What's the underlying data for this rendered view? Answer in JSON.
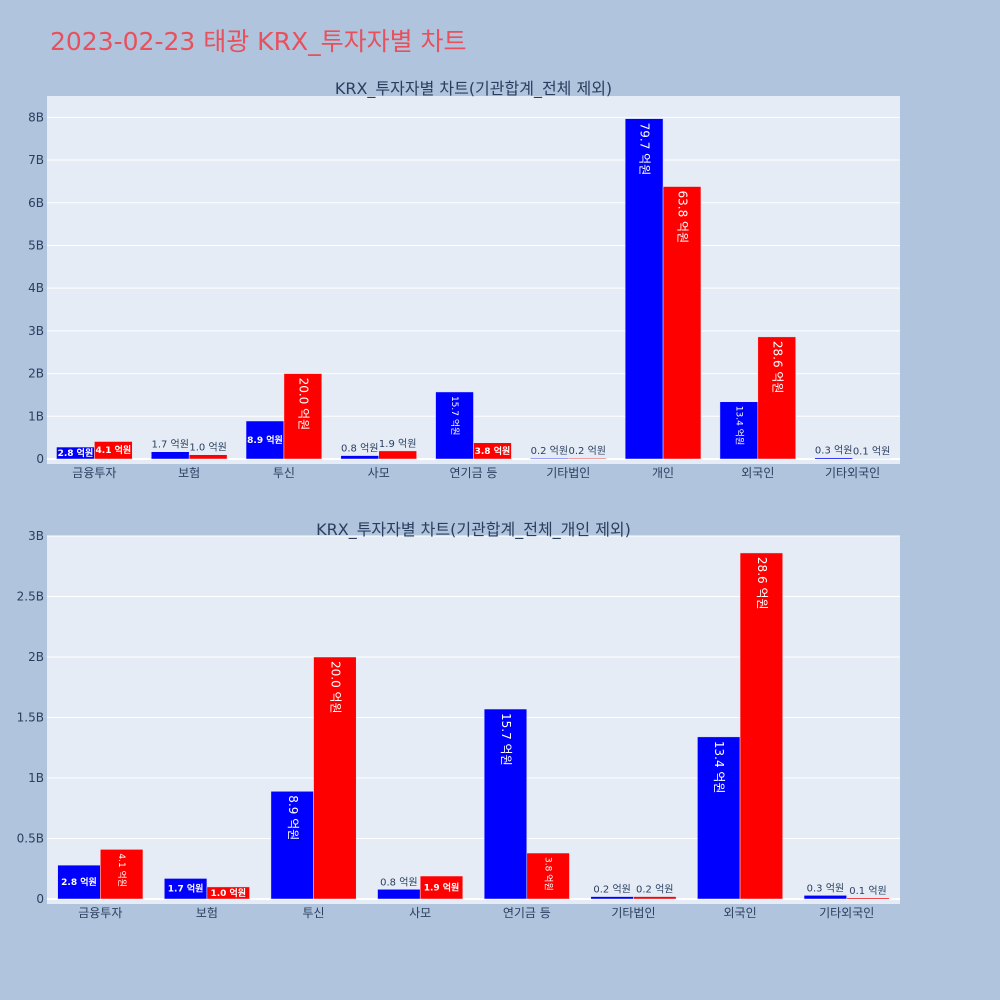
{
  "page": {
    "title": "2023-02-23 태광 KRX_투자자별 차트"
  },
  "colors": {
    "buy": "#0000ff",
    "sell": "#ff0000",
    "plot_bg": "#e5ecf6",
    "paper_bg": "#b0c4de",
    "title": "#e8505b"
  },
  "chart_data": [
    {
      "type": "bar",
      "title": "KRX_투자자별 차트(기관합계_전체 제외)",
      "categories": [
        "금융투자",
        "보험",
        "투신",
        "사모",
        "연기금 등",
        "기타법인",
        "개인",
        "외국인",
        "기타외국인"
      ],
      "series": [
        {
          "color": "#0000ff",
          "values": [
            280000000,
            170000000,
            890000000,
            80000000,
            1570000000,
            20000000,
            7970000000,
            1340000000,
            30000000
          ],
          "labels": [
            "2.8 억원",
            "1.7 억원",
            "8.9 억원",
            "0.8 억원",
            "15.7 억원",
            "0.2 억원",
            "79.7 억원",
            "13.4 억원",
            "0.3 억원"
          ]
        },
        {
          "color": "#ff0000",
          "values": [
            410000000,
            100000000,
            2000000000,
            190000000,
            380000000,
            20000000,
            6380000000,
            2860000000,
            10000000
          ],
          "labels": [
            "4.1 억원",
            "1.0 억원",
            "20.0 억원",
            "1.9 억원",
            "3.8 억원",
            "0.2 억원",
            "63.8 억원",
            "28.6 억원",
            "0.1 억원"
          ]
        }
      ],
      "ylim": [
        0,
        8500000000
      ],
      "yticks": [
        0,
        1000000000,
        2000000000,
        3000000000,
        4000000000,
        5000000000,
        6000000000,
        7000000000,
        8000000000
      ],
      "ytick_labels": [
        "0",
        "1B",
        "2B",
        "3B",
        "4B",
        "5B",
        "6B",
        "7B",
        "8B"
      ],
      "grid": true
    },
    {
      "type": "bar",
      "title": "KRX_투자자별 차트(기관합계_전체_개인 제외)",
      "categories": [
        "금융투자",
        "보험",
        "투신",
        "사모",
        "연기금 등",
        "기타법인",
        "외국인",
        "기타외국인"
      ],
      "series": [
        {
          "color": "#0000ff",
          "values": [
            280000000,
            170000000,
            890000000,
            80000000,
            1570000000,
            20000000,
            1340000000,
            30000000
          ],
          "labels": [
            "2.8 억원",
            "1.7 억원",
            "8.9 억원",
            "0.8 억원",
            "15.7 억원",
            "0.2 억원",
            "13.4 억원",
            "0.3 억원"
          ]
        },
        {
          "color": "#ff0000",
          "values": [
            410000000,
            100000000,
            2000000000,
            190000000,
            380000000,
            20000000,
            2860000000,
            10000000
          ],
          "labels": [
            "4.1 억원",
            "1.0 억원",
            "20.0 억원",
            "1.9 억원",
            "3.8 억원",
            "0.2 억원",
            "28.6 억원",
            "0.1 억원"
          ]
        }
      ],
      "ylim": [
        0,
        3000000000
      ],
      "yticks": [
        0,
        500000000,
        1000000000,
        1500000000,
        2000000000,
        2500000000,
        3000000000
      ],
      "ytick_labels": [
        "0",
        "0.5B",
        "1B",
        "1.5B",
        "2B",
        "2.5B",
        "3B"
      ],
      "grid": true
    }
  ]
}
